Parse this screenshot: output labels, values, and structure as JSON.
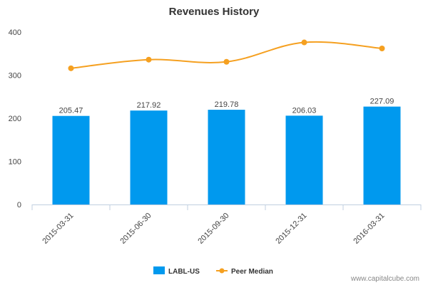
{
  "chart_data": {
    "type": "bar",
    "title": "Revenues History",
    "xlabel": "",
    "ylabel": "",
    "categories": [
      "2015-03-31",
      "2015-06-30",
      "2015-09-30",
      "2015-12-31",
      "2016-03-31"
    ],
    "ylim": [
      0,
      400
    ],
    "yticks": [
      0,
      100,
      200,
      300,
      400
    ],
    "grid": false,
    "legend_placement": "bottom-center",
    "series": [
      {
        "name": "LABL-US",
        "type": "bar",
        "color": "#0099ee",
        "values": [
          205.47,
          217.92,
          219.78,
          206.03,
          227.09
        ],
        "data_labels": [
          "205.47",
          "217.92",
          "219.78",
          "206.03",
          "227.09"
        ]
      },
      {
        "name": "Peer Median",
        "type": "line",
        "color": "#f5a020",
        "values": [
          316,
          336,
          331,
          376,
          362
        ]
      }
    ]
  },
  "watermark": "www.capitalcube.com"
}
